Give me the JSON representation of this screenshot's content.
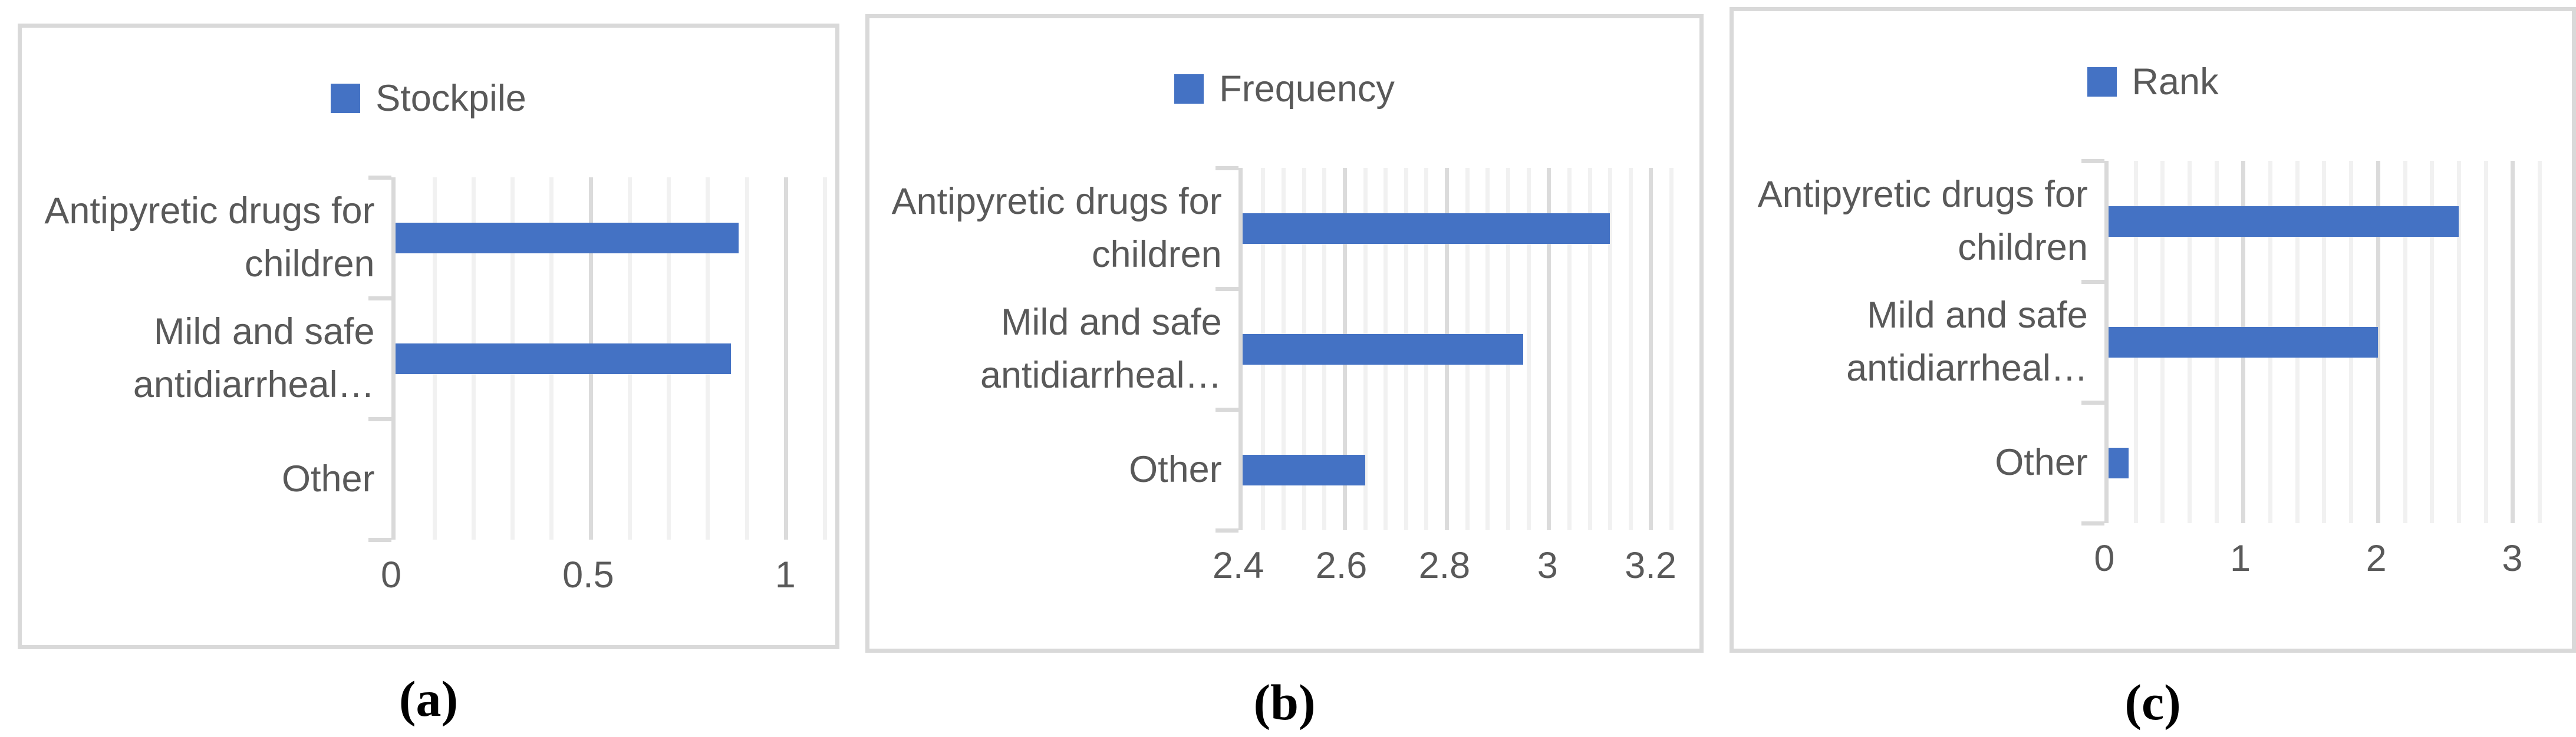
{
  "colors": {
    "bar": "#4472C4",
    "axis_text": "#595959",
    "grid_minor": "#F1F1F1",
    "grid_major": "#DBDBDB",
    "axis_line": "#D9D9D9",
    "panel_border": "#D9D9D9",
    "caption_text": "#000000"
  },
  "chart_data": [
    {
      "type": "bar",
      "orientation": "horizontal",
      "caption": "(a)",
      "legend": "Stockpile",
      "legend_position": "top",
      "grid": true,
      "categories": [
        "Antipyretic drugs for children",
        "Mild and safe antidiarrheal…",
        "Other"
      ],
      "values": [
        0.88,
        0.86,
        0
      ],
      "xlim": [
        0,
        1.1
      ],
      "xticks": [
        0,
        0.5,
        1
      ],
      "xtick_labels": [
        "0",
        "0.5",
        "1"
      ],
      "major_unit": 0.5,
      "minor_unit": 0.1,
      "bar_color": "#4472C4"
    },
    {
      "type": "bar",
      "orientation": "horizontal",
      "caption": "(b)",
      "legend": "Frequency",
      "legend_position": "top",
      "grid": true,
      "categories": [
        "Antipyretic drugs for children",
        "Mild and safe antidiarrheal…",
        "Other"
      ],
      "values": [
        3.12,
        2.95,
        2.64
      ],
      "xlim": [
        2.4,
        3.24
      ],
      "xticks": [
        2.4,
        2.6,
        2.8,
        3,
        3.2
      ],
      "xtick_labels": [
        "2.4",
        "2.6",
        "2.8",
        "3",
        "3.2"
      ],
      "major_unit": 0.2,
      "minor_unit": 0.04,
      "bar_color": "#4472C4"
    },
    {
      "type": "bar",
      "orientation": "horizontal",
      "caption": "(c)",
      "legend": "Rank",
      "legend_position": "top",
      "grid": true,
      "categories": [
        "Antipyretic drugs for children",
        "Mild and safe antidiarrheal…",
        "Other"
      ],
      "values": [
        2.6,
        2,
        0.15
      ],
      "xlim": [
        0,
        3.2
      ],
      "xticks": [
        0,
        1,
        2,
        3
      ],
      "xtick_labels": [
        "0",
        "1",
        "2",
        "3"
      ],
      "major_unit": 1,
      "minor_unit": 0.2,
      "bar_color": "#4472C4"
    }
  ]
}
